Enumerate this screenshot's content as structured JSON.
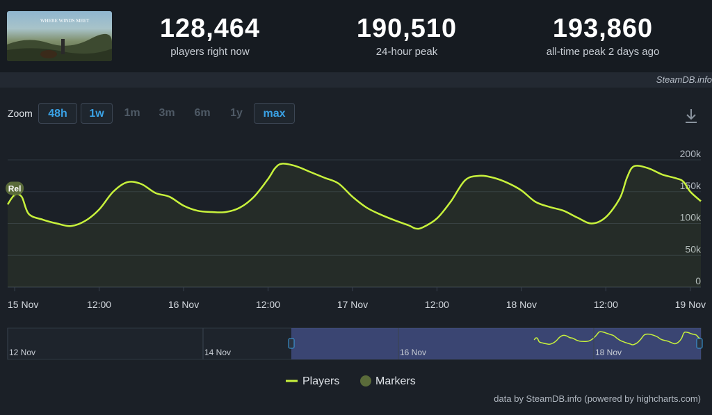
{
  "header": {
    "game_title": "WHERE WINDS MEET",
    "stats": [
      {
        "value": "128,464",
        "label": "players right now"
      },
      {
        "value": "190,510",
        "label": "24-hour peak"
      },
      {
        "value": "193,860",
        "label": "all-time peak 2 days ago"
      }
    ],
    "source": "SteamDB.info"
  },
  "toolbar": {
    "zoom_label": "Zoom",
    "zoom_buttons": [
      {
        "label": "48h",
        "active": true
      },
      {
        "label": "1w",
        "active": true
      },
      {
        "label": "1m",
        "active": false
      },
      {
        "label": "3m",
        "active": false
      },
      {
        "label": "6m",
        "active": false
      },
      {
        "label": "1y",
        "active": false
      },
      {
        "label": "max",
        "active": true
      }
    ],
    "download_icon": "download-icon"
  },
  "chart_data": {
    "type": "area",
    "title": "",
    "xlabel": "",
    "ylabel": "",
    "ylim": [
      0,
      200000
    ],
    "y_ticks": [
      "0",
      "50k",
      "100k",
      "150k",
      "200k"
    ],
    "y_tick_values": [
      0,
      50000,
      100000,
      150000,
      200000
    ],
    "x_ticks": [
      "15 Nov",
      "12:00",
      "16 Nov",
      "12:00",
      "17 Nov",
      "12:00",
      "18 Nov",
      "12:00",
      "19 Nov"
    ],
    "x_tick_hours": [
      0,
      12,
      24,
      36,
      48,
      60,
      72,
      84,
      96
    ],
    "x_range_hours": [
      -1,
      97.5
    ],
    "series": [
      {
        "name": "Players",
        "color": "#c8f23c",
        "points": [
          [
            -1,
            130000
          ],
          [
            0,
            145000
          ],
          [
            1,
            142000
          ],
          [
            2,
            115000
          ],
          [
            4,
            106000
          ],
          [
            6,
            100000
          ],
          [
            8,
            96000
          ],
          [
            10,
            104000
          ],
          [
            12,
            122000
          ],
          [
            14,
            150000
          ],
          [
            16,
            165000
          ],
          [
            18,
            162000
          ],
          [
            20,
            148000
          ],
          [
            22,
            142000
          ],
          [
            24,
            128000
          ],
          [
            26,
            120000
          ],
          [
            28,
            118000
          ],
          [
            30,
            118000
          ],
          [
            32,
            125000
          ],
          [
            34,
            142000
          ],
          [
            36,
            170000
          ],
          [
            37,
            187000
          ],
          [
            38,
            194000
          ],
          [
            40,
            190000
          ],
          [
            42,
            181000
          ],
          [
            44,
            172000
          ],
          [
            46,
            163000
          ],
          [
            48,
            142000
          ],
          [
            50,
            125000
          ],
          [
            52,
            114000
          ],
          [
            54,
            105000
          ],
          [
            56,
            97000
          ],
          [
            57,
            92000
          ],
          [
            58,
            94000
          ],
          [
            60,
            108000
          ],
          [
            62,
            135000
          ],
          [
            64,
            168000
          ],
          [
            66,
            175000
          ],
          [
            68,
            172000
          ],
          [
            70,
            164000
          ],
          [
            72,
            152000
          ],
          [
            74,
            134000
          ],
          [
            76,
            126000
          ],
          [
            78,
            120000
          ],
          [
            80,
            109000
          ],
          [
            82,
            100000
          ],
          [
            84,
            110000
          ],
          [
            86,
            140000
          ],
          [
            87,
            172000
          ],
          [
            88,
            190000
          ],
          [
            90,
            187000
          ],
          [
            92,
            177000
          ],
          [
            94,
            171000
          ],
          [
            95,
            166000
          ],
          [
            96,
            150000
          ],
          [
            97.5,
            135000
          ]
        ]
      }
    ],
    "markers": [
      {
        "label": "Rel",
        "x": 0,
        "y": 145000
      }
    ],
    "navigator": {
      "ticks": [
        "12 Nov",
        "14 Nov",
        "16 Nov",
        "18 Nov"
      ]
    },
    "legend": {
      "items": [
        "Players",
        "Markers"
      ],
      "position": "bottom"
    },
    "credit": "data by SteamDB.info (powered by highcharts.com)"
  },
  "colors": {
    "line": "#c8f23c",
    "marker": "#5a6b3a",
    "accent": "#3aa2e6",
    "background": "#1b2027"
  }
}
